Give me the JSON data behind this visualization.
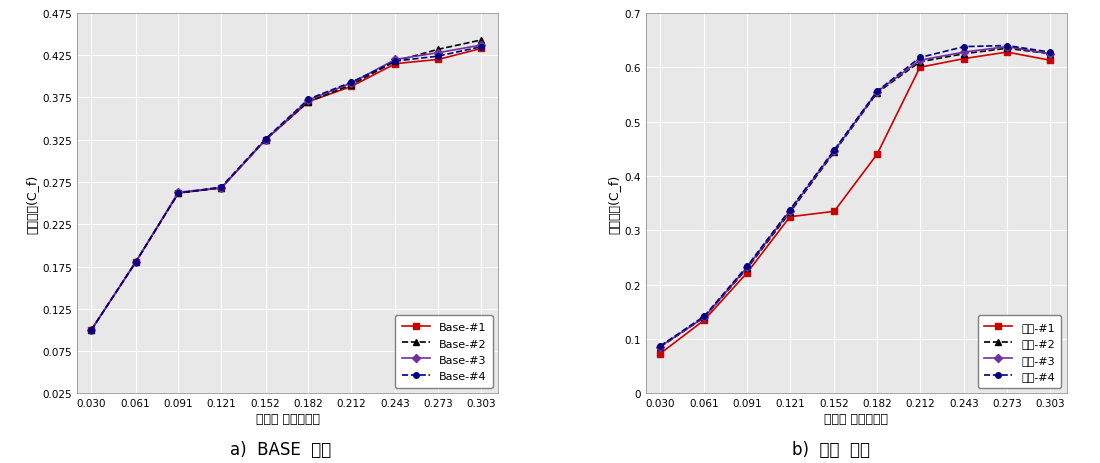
{
  "x": [
    0.03,
    0.061,
    0.091,
    0.121,
    0.152,
    0.182,
    0.212,
    0.243,
    0.273,
    0.303
  ],
  "base": {
    "series1": [
      0.1,
      0.18,
      0.262,
      0.268,
      0.325,
      0.37,
      0.388,
      0.415,
      0.42,
      0.433
    ],
    "series2": [
      0.1,
      0.18,
      0.262,
      0.268,
      0.325,
      0.37,
      0.39,
      0.418,
      0.432,
      0.443
    ],
    "series3": [
      0.1,
      0.18,
      0.263,
      0.268,
      0.325,
      0.372,
      0.392,
      0.42,
      0.428,
      0.437
    ],
    "series4": [
      0.1,
      0.18,
      0.262,
      0.269,
      0.326,
      0.373,
      0.393,
      0.418,
      0.424,
      0.435
    ]
  },
  "improved": {
    "series1": [
      0.073,
      0.135,
      0.222,
      0.325,
      0.335,
      0.44,
      0.6,
      0.616,
      0.628,
      0.613
    ],
    "series2": [
      0.085,
      0.14,
      0.23,
      0.333,
      0.444,
      0.553,
      0.61,
      0.625,
      0.635,
      0.625
    ],
    "series3": [
      0.086,
      0.14,
      0.232,
      0.336,
      0.446,
      0.555,
      0.613,
      0.628,
      0.638,
      0.625
    ],
    "series4": [
      0.087,
      0.142,
      0.234,
      0.338,
      0.448,
      0.556,
      0.618,
      0.638,
      0.64,
      0.628
    ]
  },
  "base_ylim": [
    0.025,
    0.475
  ],
  "base_yticks": [
    0.025,
    0.075,
    0.125,
    0.175,
    0.225,
    0.275,
    0.325,
    0.375,
    0.425,
    0.475
  ],
  "improved_ylim": [
    0,
    0.7
  ],
  "improved_yticks": [
    0,
    0.1,
    0.2,
    0.3,
    0.4,
    0.5,
    0.6,
    0.7
  ],
  "xlabel": "무차원 밸브리프트",
  "ylabel": "유량계수(C_f)",
  "base_labels": [
    "Base-#1",
    "Base-#2",
    "Base-#3",
    "Base-#4"
  ],
  "improved_labels": [
    "개선-#1",
    "개선-#2",
    "개선-#3",
    "개선-#4"
  ],
  "subtitle_base": "a)  BASE  포트",
  "subtitle_improved": "b)  개선  포트",
  "colors": [
    "#cc0000",
    "#000000",
    "#7030a0",
    "#000080"
  ],
  "line_styles": [
    "-",
    "--",
    "-",
    "--"
  ],
  "markers": [
    "s",
    "^",
    "D",
    "o"
  ],
  "bg_color": "#e8e8e8",
  "xlim": [
    0.02,
    0.315
  ],
  "xticks": [
    0.03,
    0.061,
    0.091,
    0.121,
    0.152,
    0.182,
    0.212,
    0.243,
    0.273,
    0.303
  ]
}
